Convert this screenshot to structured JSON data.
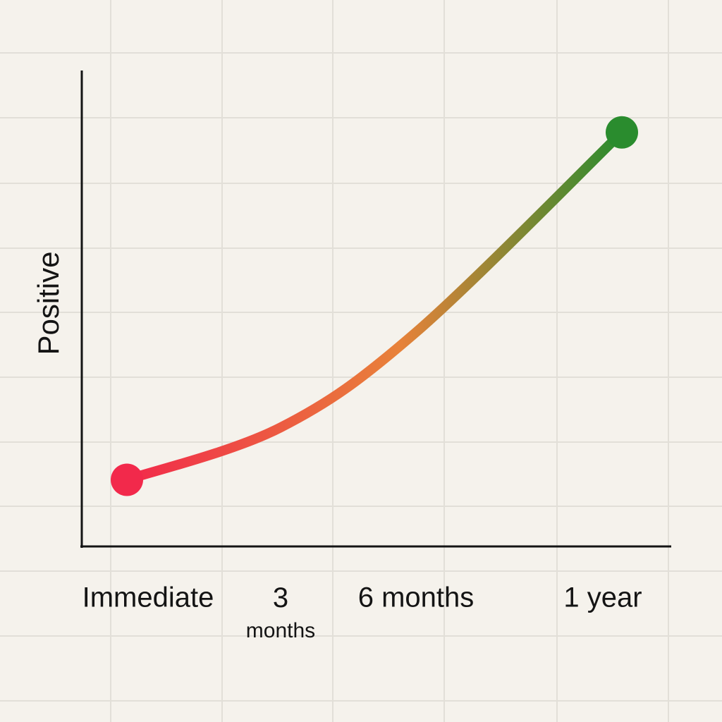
{
  "chart_data": {
    "type": "line",
    "y_label": "Positive",
    "categories": [
      "Immediate",
      "3 months",
      "6 months",
      "1 year"
    ],
    "values": [
      14,
      25,
      45,
      87
    ],
    "ylim": [
      0,
      100
    ],
    "colors": [
      "#f2294b",
      "#e8823a",
      "#2a8c2e"
    ],
    "grid": true
  }
}
